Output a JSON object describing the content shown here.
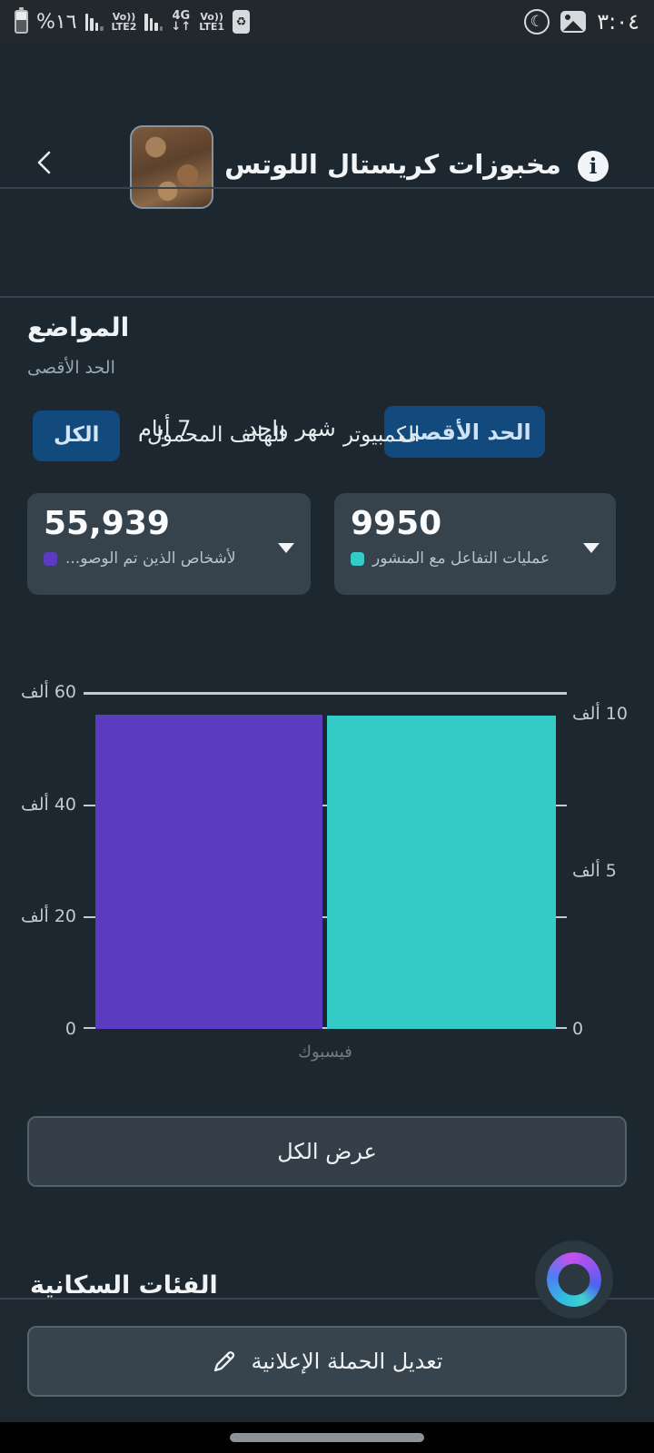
{
  "status_bar": {
    "battery_percent": "%١٦",
    "sim1": {
      "top": "Vo))",
      "bottom": "LTE2"
    },
    "network": {
      "top": "4G",
      "arrows": "↓↑"
    },
    "sim2": {
      "top": "Vo))",
      "bottom": "LTE1"
    },
    "saver_glyph": "♻",
    "moon_glyph": "☾",
    "time": "٣:٠٤"
  },
  "header": {
    "title": "مخبوزات كريستال اللوتس",
    "info_glyph": "i"
  },
  "period_tabs": {
    "items": [
      {
        "label": "الحد الأقصى",
        "selected": true
      },
      {
        "label": "شهر واحد",
        "selected": false
      },
      {
        "label": "7 أيام",
        "selected": false
      }
    ]
  },
  "placements": {
    "title": "المواضع",
    "subtitle": "الحد الأقصى",
    "device_tabs": [
      {
        "label": "الكل",
        "selected": true
      },
      {
        "label": "الهاتف المحمول",
        "selected": false
      },
      {
        "label": "الكمبيوتر",
        "selected": false
      }
    ],
    "metrics": [
      {
        "value": "55,939",
        "label": "لأشخاص الذين تم الوصو...",
        "color": "#5b3cc0"
      },
      {
        "value": "9950",
        "label": "عمليات التفاعل مع المنشور",
        "color": "#34cbc7"
      }
    ]
  },
  "chart_data": {
    "type": "bar",
    "categories": [
      "فيسبوك"
    ],
    "series": [
      {
        "name": "لأشخاص الذين تم الوصول إليهم",
        "values": [
          55939
        ],
        "color": "#5b3cc0",
        "axis": "left"
      },
      {
        "name": "عمليات التفاعل مع المنشور",
        "values": [
          9950
        ],
        "color": "#34cbc7",
        "axis": "right"
      }
    ],
    "left_axis_max": 60000,
    "right_axis_max": 10000,
    "left_ticks": [
      "60 ألف",
      "40 ألف",
      "20 ألف",
      "0"
    ],
    "right_ticks": [
      "10 ألف",
      "5 ألف",
      "0"
    ],
    "grid": "horizontal",
    "legend": "none"
  },
  "view_all_label": "عرض الكل",
  "clipped_section_title": "الفئات السكانية",
  "bottom_bar": {
    "edit_button_label": "تعديل الحملة الإعلانية"
  },
  "colors": {
    "background": "#1d2730",
    "card": "#36424c",
    "selected_pill": "#134a7d",
    "bar_purple": "#5b3cc0",
    "bar_teal": "#34cbc7"
  }
}
